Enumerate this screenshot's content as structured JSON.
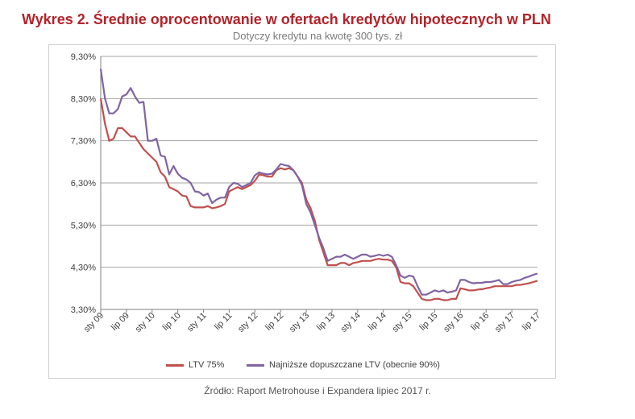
{
  "title": "Wykres 2. Średnie oprocentowanie w ofertach kredytów hipotecznych w PLN",
  "subtitle": "Dotyczy kredytu na kwotę 300 tys. zł",
  "source": "Źródło: Raport Metrohouse i Expandera lipiec 2017 r.",
  "colors": {
    "series1": "#c0504d",
    "series2": "#8064a2",
    "grid": "#a6a6a6",
    "axis_text": "#404040"
  },
  "chart_data": {
    "type": "line",
    "title": "Wykres 2. Średnie oprocentowanie w ofertach kredytów hipotecznych w PLN",
    "subtitle": "Dotyczy kredytu na kwotę 300 tys. zł",
    "xlabel": "",
    "ylabel": "",
    "ylim": [
      3.3,
      9.3
    ],
    "grid": true,
    "legend_position": "bottom",
    "y_ticks": [
      "3,30%",
      "4,30%",
      "5,30%",
      "6,30%",
      "7,30%",
      "8,30%",
      "9,30%"
    ],
    "x_ticks": [
      "sty 09",
      "lip 09",
      "sty 10",
      "lip 10",
      "sty 11",
      "lip 11",
      "sty 12",
      "lip 12",
      "sty 13",
      "lip 13",
      "sty 14",
      "lip 14",
      "sty 15",
      "lip 15",
      "sty 16",
      "lip 16",
      "sty 17",
      "lip 17"
    ],
    "x_tick_index": [
      0,
      6,
      12,
      18,
      24,
      30,
      36,
      42,
      48,
      54,
      60,
      66,
      72,
      78,
      84,
      90,
      96,
      102
    ],
    "series": [
      {
        "name": "LTV 75%",
        "values": [
          8.3,
          7.7,
          7.3,
          7.35,
          7.6,
          7.6,
          7.5,
          7.4,
          7.4,
          7.25,
          7.1,
          7.0,
          6.9,
          6.8,
          6.55,
          6.45,
          6.2,
          6.15,
          6.1,
          6.0,
          5.98,
          5.75,
          5.72,
          5.72,
          5.72,
          5.75,
          5.7,
          5.72,
          5.75,
          5.8,
          6.1,
          6.15,
          6.2,
          6.15,
          6.2,
          6.25,
          6.35,
          6.5,
          6.48,
          6.45,
          6.45,
          6.6,
          6.65,
          6.62,
          6.65,
          6.6,
          6.45,
          6.3,
          5.9,
          5.7,
          5.4,
          4.95,
          4.65,
          4.35,
          4.35,
          4.35,
          4.4,
          4.4,
          4.35,
          4.4,
          4.42,
          4.45,
          4.45,
          4.45,
          4.48,
          4.5,
          4.48,
          4.48,
          4.45,
          4.3,
          3.95,
          3.92,
          3.92,
          3.85,
          3.7,
          3.55,
          3.52,
          3.52,
          3.55,
          3.55,
          3.52,
          3.52,
          3.55,
          3.55,
          3.8,
          3.78,
          3.75,
          3.75,
          3.77,
          3.78,
          3.8,
          3.82,
          3.85,
          3.85,
          3.85,
          3.85,
          3.85,
          3.88,
          3.88,
          3.9,
          3.92,
          3.95,
          3.98
        ],
        "color": "#c0504d"
      },
      {
        "name": "Najniższe dopuszczane LTV (obecnie 90%)",
        "values": [
          9.0,
          8.3,
          7.95,
          7.95,
          8.05,
          8.35,
          8.4,
          8.55,
          8.35,
          8.2,
          8.22,
          7.3,
          7.3,
          7.35,
          6.95,
          6.92,
          6.5,
          6.7,
          6.52,
          6.42,
          6.38,
          6.3,
          6.1,
          6.08,
          6.0,
          6.05,
          5.82,
          5.9,
          5.95,
          5.95,
          6.2,
          6.3,
          6.28,
          6.2,
          6.25,
          6.3,
          6.48,
          6.55,
          6.52,
          6.5,
          6.52,
          6.62,
          6.75,
          6.72,
          6.7,
          6.6,
          6.45,
          6.25,
          5.8,
          5.6,
          5.3,
          5.0,
          4.75,
          4.45,
          4.5,
          4.55,
          4.55,
          4.6,
          4.55,
          4.5,
          4.55,
          4.6,
          4.6,
          4.55,
          4.57,
          4.6,
          4.57,
          4.6,
          4.55,
          4.35,
          4.1,
          4.05,
          4.1,
          4.08,
          3.85,
          3.65,
          3.65,
          3.7,
          3.75,
          3.72,
          3.75,
          3.7,
          3.72,
          3.75,
          4.0,
          4.0,
          3.95,
          3.92,
          3.93,
          3.93,
          3.95,
          3.95,
          3.97,
          4.0,
          3.9,
          3.9,
          3.95,
          3.98,
          4.0,
          4.05,
          4.08,
          4.12,
          4.15
        ],
        "color": "#8064a2"
      }
    ]
  }
}
